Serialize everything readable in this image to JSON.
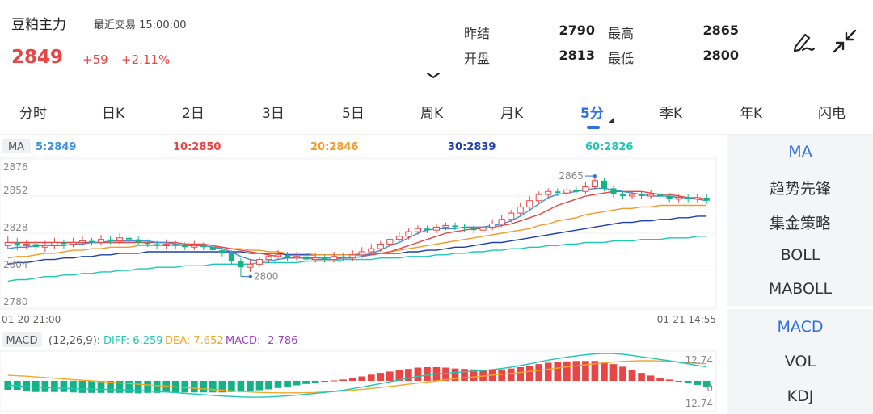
{
  "header": {
    "title": "豆粕主力",
    "subtitle": "最近交易  15:00:00",
    "price": "2849",
    "change": "+59",
    "change_pct": "+2.11%",
    "stats": {
      "prev_settle_label": "昨结",
      "prev_settle": "2790",
      "open_label": "开盘",
      "open": "2813",
      "high_label": "最高",
      "high": "2865",
      "low_label": "最低",
      "low": "2800"
    }
  },
  "tabs": [
    {
      "label": "分时"
    },
    {
      "label": "日K"
    },
    {
      "label": "2日"
    },
    {
      "label": "3日"
    },
    {
      "label": "5日"
    },
    {
      "label": "周K"
    },
    {
      "label": "月K"
    },
    {
      "label": "5分",
      "active": true
    },
    {
      "label": "季K"
    },
    {
      "label": "年K"
    },
    {
      "label": "闪电"
    }
  ],
  "ma_legend": {
    "tag": "MA",
    "items": [
      {
        "text": "5:2849",
        "color": "#3d8fe0"
      },
      {
        "text": "10:2850",
        "color": "#e84545"
      },
      {
        "text": "20:2846",
        "color": "#f39a2c"
      },
      {
        "text": "30:2839",
        "color": "#1f3fb0"
      },
      {
        "text": "60:2826",
        "color": "#1fc7b5"
      }
    ]
  },
  "macd_legend": {
    "tag": "MACD",
    "params": "(12,26,9):",
    "diff": "DIFF: 6.259",
    "dea": "DEA: 7.652",
    "macd": "MACD: -2.786"
  },
  "time_axis": {
    "start": "01-20 21:00",
    "end": "01-21 14:55"
  },
  "price_axis": {
    "ticks": [
      "2876",
      "2852",
      "2828",
      "2804",
      "2780"
    ]
  },
  "macd_axis": {
    "top": "12.74",
    "mid": "0",
    "bottom": "-12.74"
  },
  "side_panel": {
    "main_indicators": [
      "MA",
      "趋势先锋",
      "集金策略",
      "BOLL",
      "MABOLL"
    ],
    "sub_indicators": [
      "MACD",
      "VOL",
      "KDJ"
    ]
  },
  "colors": {
    "up": "#e84545",
    "down": "#14b385",
    "accent": "#2f6fe4"
  },
  "chart_data": {
    "type": "candlestick",
    "price_range": [
      2780,
      2876
    ],
    "macd_range": [
      -12.74,
      12.74
    ],
    "high_label": "2865",
    "low_label": "2800",
    "candles": [
      [
        2820,
        2822,
        2818,
        2826
      ],
      [
        2822,
        2820,
        2817,
        2825
      ],
      [
        2820,
        2821,
        2818,
        2824
      ],
      [
        2821,
        2819,
        2816,
        2823
      ],
      [
        2819,
        2820,
        2816,
        2823
      ],
      [
        2820,
        2822,
        2818,
        2825
      ],
      [
        2822,
        2821,
        2818,
        2824
      ],
      [
        2821,
        2822,
        2819,
        2825
      ],
      [
        2822,
        2823,
        2820,
        2826
      ],
      [
        2823,
        2822,
        2820,
        2825
      ],
      [
        2822,
        2824,
        2820,
        2827
      ],
      [
        2824,
        2823,
        2821,
        2826
      ],
      [
        2823,
        2825,
        2821,
        2828
      ],
      [
        2825,
        2824,
        2822,
        2827
      ],
      [
        2824,
        2822,
        2820,
        2826
      ],
      [
        2822,
        2821,
        2819,
        2824
      ],
      [
        2821,
        2820,
        2818,
        2823
      ],
      [
        2820,
        2821,
        2818,
        2824
      ],
      [
        2821,
        2820,
        2818,
        2823
      ],
      [
        2820,
        2819,
        2817,
        2822
      ],
      [
        2819,
        2820,
        2817,
        2823
      ],
      [
        2820,
        2819,
        2817,
        2822
      ],
      [
        2819,
        2817,
        2815,
        2821
      ],
      [
        2817,
        2815,
        2813,
        2819
      ],
      [
        2815,
        2810,
        2808,
        2817
      ],
      [
        2810,
        2806,
        2800,
        2812
      ],
      [
        2806,
        2808,
        2803,
        2811
      ],
      [
        2808,
        2811,
        2806,
        2813
      ],
      [
        2811,
        2813,
        2809,
        2815
      ],
      [
        2813,
        2814,
        2811,
        2817
      ],
      [
        2814,
        2812,
        2810,
        2816
      ],
      [
        2812,
        2813,
        2810,
        2816
      ],
      [
        2813,
        2811,
        2809,
        2815
      ],
      [
        2811,
        2812,
        2809,
        2815
      ],
      [
        2812,
        2811,
        2809,
        2814
      ],
      [
        2811,
        2813,
        2809,
        2816
      ],
      [
        2813,
        2812,
        2810,
        2815
      ],
      [
        2812,
        2814,
        2810,
        2817
      ],
      [
        2814,
        2816,
        2812,
        2819
      ],
      [
        2816,
        2818,
        2814,
        2821
      ],
      [
        2818,
        2821,
        2816,
        2823
      ],
      [
        2821,
        2824,
        2819,
        2826
      ],
      [
        2824,
        2826,
        2822,
        2829
      ],
      [
        2826,
        2829,
        2824,
        2831
      ],
      [
        2829,
        2831,
        2827,
        2833
      ],
      [
        2831,
        2830,
        2828,
        2833
      ],
      [
        2830,
        2832,
        2828,
        2834
      ],
      [
        2832,
        2833,
        2830,
        2835
      ],
      [
        2833,
        2832,
        2830,
        2835
      ],
      [
        2832,
        2831,
        2829,
        2834
      ],
      [
        2831,
        2830,
        2828,
        2833
      ],
      [
        2830,
        2832,
        2828,
        2834
      ],
      [
        2832,
        2834,
        2830,
        2837
      ],
      [
        2834,
        2837,
        2832,
        2840
      ],
      [
        2837,
        2841,
        2835,
        2843
      ],
      [
        2841,
        2845,
        2839,
        2848
      ],
      [
        2845,
        2849,
        2843,
        2852
      ],
      [
        2849,
        2853,
        2847,
        2855
      ],
      [
        2853,
        2855,
        2851,
        2857
      ],
      [
        2855,
        2854,
        2852,
        2857
      ],
      [
        2854,
        2856,
        2852,
        2858
      ],
      [
        2856,
        2855,
        2853,
        2858
      ],
      [
        2855,
        2858,
        2853,
        2861
      ],
      [
        2858,
        2862,
        2856,
        2865
      ],
      [
        2862,
        2857,
        2855,
        2864
      ],
      [
        2857,
        2853,
        2851,
        2859
      ],
      [
        2853,
        2852,
        2850,
        2855
      ],
      [
        2852,
        2853,
        2850,
        2855
      ],
      [
        2853,
        2852,
        2850,
        2855
      ],
      [
        2852,
        2853,
        2850,
        2856
      ],
      [
        2853,
        2852,
        2850,
        2855
      ],
      [
        2852,
        2850,
        2848,
        2854
      ],
      [
        2850,
        2851,
        2848,
        2853
      ],
      [
        2851,
        2850,
        2848,
        2853
      ],
      [
        2850,
        2851,
        2848,
        2853
      ],
      [
        2851,
        2849,
        2847,
        2853
      ]
    ],
    "ma": {
      "5": [
        2818,
        2819,
        2819,
        2820,
        2820,
        2820,
        2820,
        2821,
        2821,
        2822,
        2822,
        2823,
        2823,
        2823,
        2823,
        2823,
        2822,
        2822,
        2821,
        2820,
        2820,
        2820,
        2819,
        2818,
        2816,
        2813,
        2811,
        2810,
        2810,
        2811,
        2812,
        2812,
        2812,
        2812,
        2812,
        2812,
        2812,
        2812,
        2813,
        2815,
        2817,
        2820,
        2822,
        2825,
        2828,
        2830,
        2831,
        2831,
        2831,
        2832,
        2832,
        2832,
        2833,
        2834,
        2836,
        2839,
        2843,
        2847,
        2851,
        2853,
        2854,
        2855,
        2856,
        2857,
        2857,
        2856,
        2855,
        2854,
        2853,
        2852,
        2852,
        2852,
        2851,
        2851,
        2850,
        2849
      ],
      "10": [
        2822,
        2822,
        2822,
        2822,
        2822,
        2822,
        2822,
        2822,
        2822,
        2822,
        2822,
        2822,
        2822,
        2822,
        2822,
        2822,
        2822,
        2822,
        2822,
        2821,
        2821,
        2821,
        2820,
        2819,
        2818,
        2817,
        2816,
        2815,
        2814,
        2813,
        2812,
        2812,
        2812,
        2811,
        2811,
        2811,
        2812,
        2812,
        2813,
        2814,
        2815,
        2816,
        2818,
        2820,
        2822,
        2824,
        2826,
        2828,
        2829,
        2830,
        2831,
        2831,
        2832,
        2833,
        2834,
        2836,
        2838,
        2840,
        2843,
        2846,
        2848,
        2850,
        2852,
        2853,
        2854,
        2855,
        2855,
        2855,
        2855,
        2854,
        2853,
        2853,
        2852,
        2851,
        2851,
        2850
      ],
      "20": [
        2812,
        2813,
        2813,
        2814,
        2815,
        2815,
        2816,
        2817,
        2817,
        2818,
        2818,
        2819,
        2819,
        2819,
        2820,
        2820,
        2820,
        2820,
        2820,
        2820,
        2820,
        2820,
        2819,
        2819,
        2818,
        2818,
        2817,
        2817,
        2816,
        2816,
        2815,
        2815,
        2815,
        2814,
        2814,
        2814,
        2814,
        2814,
        2815,
        2815,
        2815,
        2816,
        2817,
        2818,
        2819,
        2820,
        2821,
        2822,
        2823,
        2824,
        2825,
        2826,
        2827,
        2828,
        2829,
        2830,
        2831,
        2833,
        2834,
        2836,
        2837,
        2838,
        2840,
        2841,
        2842,
        2843,
        2844,
        2844,
        2845,
        2845,
        2846,
        2846,
        2846,
        2846,
        2846,
        2846
      ],
      "30": [
        2808,
        2809,
        2809,
        2810,
        2811,
        2811,
        2812,
        2812,
        2813,
        2813,
        2814,
        2814,
        2815,
        2815,
        2815,
        2816,
        2816,
        2816,
        2816,
        2816,
        2816,
        2816,
        2816,
        2816,
        2816,
        2816,
        2815,
        2815,
        2815,
        2815,
        2814,
        2814,
        2814,
        2814,
        2814,
        2814,
        2814,
        2814,
        2814,
        2814,
        2815,
        2815,
        2815,
        2816,
        2816,
        2817,
        2817,
        2818,
        2819,
        2819,
        2820,
        2821,
        2822,
        2822,
        2823,
        2824,
        2825,
        2826,
        2827,
        2828,
        2829,
        2830,
        2831,
        2832,
        2833,
        2834,
        2835,
        2835,
        2836,
        2836,
        2837,
        2837,
        2838,
        2838,
        2839,
        2839
      ],
      "60": [
        2797,
        2798,
        2798,
        2799,
        2800,
        2800,
        2801,
        2801,
        2802,
        2802,
        2803,
        2803,
        2804,
        2804,
        2805,
        2805,
        2806,
        2806,
        2806,
        2807,
        2807,
        2807,
        2808,
        2808,
        2808,
        2808,
        2808,
        2809,
        2809,
        2809,
        2809,
        2809,
        2810,
        2810,
        2810,
        2810,
        2811,
        2811,
        2811,
        2811,
        2812,
        2812,
        2812,
        2813,
        2813,
        2813,
        2814,
        2814,
        2815,
        2815,
        2816,
        2816,
        2817,
        2817,
        2818,
        2818,
        2819,
        2819,
        2820,
        2820,
        2821,
        2821,
        2822,
        2822,
        2822,
        2823,
        2823,
        2823,
        2824,
        2824,
        2824,
        2825,
        2825,
        2825,
        2826,
        2826
      ]
    },
    "diff": [
      -2,
      -2.2,
      -2.5,
      -2.8,
      -3,
      -3.2,
      -3.3,
      -3.5,
      -3.6,
      -3.7,
      -3.8,
      -3.9,
      -4,
      -4.1,
      -4.3,
      -4.5,
      -4.8,
      -5,
      -5.3,
      -5.6,
      -5.9,
      -6.2,
      -6.5,
      -6.8,
      -7,
      -7.2,
      -7.3,
      -7.3,
      -7.2,
      -7,
      -6.7,
      -6.4,
      -6,
      -5.6,
      -5.2,
      -4.7,
      -4.2,
      -3.5,
      -2.8,
      -2,
      -1.2,
      -0.4,
      0.4,
      1.2,
      2,
      2.6,
      3.1,
      3.5,
      3.8,
      4.1,
      4.4,
      4.7,
      5.1,
      5.6,
      6.2,
      6.9,
      7.7,
      8.6,
      9.4,
      10.1,
      10.7,
      11.3,
      11.8,
      12.2,
      12.4,
      12.3,
      12,
      11.5,
      10.9,
      10.3,
      9.7,
      9.1,
      8.4,
      7.7,
      7,
      6.3
    ],
    "dea": [
      2.5,
      2.3,
      2.1,
      1.8,
      1.5,
      1.2,
      0.9,
      0.6,
      0.3,
      0,
      -0.3,
      -0.6,
      -0.9,
      -1.2,
      -1.5,
      -1.8,
      -2.1,
      -2.4,
      -2.7,
      -3,
      -3.3,
      -3.6,
      -3.9,
      -4.2,
      -4.5,
      -4.8,
      -5,
      -5.2,
      -5.3,
      -5.4,
      -5.4,
      -5.4,
      -5.3,
      -5.2,
      -5,
      -4.8,
      -4.5,
      -4.2,
      -3.8,
      -3.4,
      -3,
      -2.5,
      -2,
      -1.5,
      -1,
      -0.5,
      0,
      0.5,
      1,
      1.4,
      1.8,
      2.2,
      2.6,
      3,
      3.4,
      3.8,
      4.3,
      4.8,
      5.3,
      5.8,
      6.3,
      6.8,
      7.3,
      7.7,
      8.1,
      8.5,
      8.8,
      9,
      9.1,
      9.1,
      9,
      8.8,
      8.5,
      8.2,
      7.9,
      7.7
    ],
    "macd": [
      -4,
      -4,
      -4.6,
      -5,
      -5,
      -5,
      -5,
      -5.2,
      -5.4,
      -5.4,
      -5.4,
      -5.4,
      -5.4,
      -5.4,
      -5.6,
      -5.4,
      -5.4,
      -5.2,
      -5.2,
      -5.2,
      -5.2,
      -5.2,
      -5.2,
      -5.2,
      -5,
      -4.8,
      -4.6,
      -4.2,
      -3.8,
      -3.2,
      -2.6,
      -2,
      -1.4,
      -0.8,
      -0.4,
      0.2,
      0.6,
      1.4,
      2,
      2.8,
      3.6,
      4.2,
      4.8,
      5.4,
      6,
      6.2,
      6.2,
      6,
      5.6,
      5.4,
      5.2,
      5,
      5,
      5.2,
      5.6,
      6.2,
      6.8,
      7.6,
      8.2,
      8.6,
      8.8,
      9,
      9,
      9,
      8.6,
      7.6,
      6.4,
      5,
      3.6,
      2.4,
      1.4,
      0.6,
      -0.2,
      -1,
      -1.8,
      -2.8
    ]
  }
}
